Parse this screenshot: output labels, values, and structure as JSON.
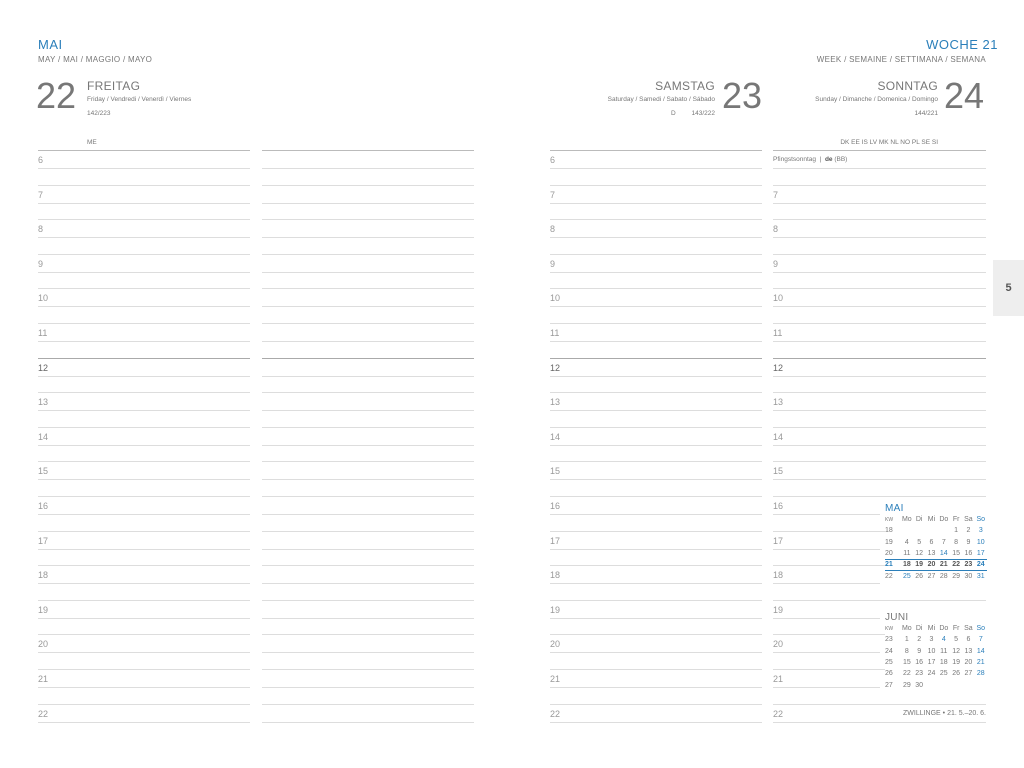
{
  "left_header": {
    "month": "MAI",
    "month_translations": "MAY / MAI / MAGGIO / MAYO"
  },
  "right_header": {
    "week": "WOCHE 21",
    "week_translations": "WEEK / SEMAINE / SETTIMANA / SEMANA"
  },
  "days": [
    {
      "number": "22",
      "name": "FREITAG",
      "translations": "Friday / Vendredi / Venerdì / Viernes",
      "day_count": "142/223",
      "note": "ME",
      "moon": ""
    },
    {
      "number": "23",
      "name": "SAMSTAG",
      "translations": "Saturday / Samedi / Sabato / Sábado",
      "day_count": "143/222",
      "moon": "D"
    },
    {
      "number": "24",
      "name": "SONNTAG",
      "translations": "Sunday / Dimanche / Domenica / Domingo",
      "day_count": "144/221",
      "note": "DK EE IS LV MK NL NO PL SE SI",
      "holiday": "Pfingstsonntag",
      "holiday_region_bold": "de",
      "holiday_region": "(BB)"
    }
  ],
  "hours": [
    "6",
    "7",
    "8",
    "9",
    "10",
    "11",
    "12",
    "13",
    "14",
    "15",
    "16",
    "17",
    "18",
    "19",
    "20",
    "21",
    "22"
  ],
  "tab": "5",
  "zodiac": "ZWILLINGE • 21. 5.–20. 6.",
  "colors": {
    "accent": "#2b7fba",
    "text": "#777777"
  },
  "mini_calendars": [
    {
      "title": "MAI",
      "header": [
        "KW",
        "Mo",
        "Di",
        "Mi",
        "Do",
        "Fr",
        "Sa",
        "So"
      ],
      "rows": [
        [
          "18",
          "",
          "",
          "",
          "",
          "1",
          "2",
          "3"
        ],
        [
          "19",
          "4",
          "5",
          "6",
          "7",
          "8",
          "9",
          "10"
        ],
        [
          "20",
          "11",
          "12",
          "13",
          "14",
          "15",
          "16",
          "17"
        ],
        [
          "21",
          "18",
          "19",
          "20",
          "21",
          "22",
          "23",
          "24"
        ],
        [
          "22",
          "25",
          "26",
          "27",
          "28",
          "29",
          "30",
          "31"
        ]
      ],
      "current_week": "21",
      "holidays": [
        "14",
        "25"
      ]
    },
    {
      "title": "JUNI",
      "header": [
        "KW",
        "Mo",
        "Di",
        "Mi",
        "Do",
        "Fr",
        "Sa",
        "So"
      ],
      "rows": [
        [
          "23",
          "1",
          "2",
          "3",
          "4",
          "5",
          "6",
          "7"
        ],
        [
          "24",
          "8",
          "9",
          "10",
          "11",
          "12",
          "13",
          "14"
        ],
        [
          "25",
          "15",
          "16",
          "17",
          "18",
          "19",
          "20",
          "21"
        ],
        [
          "26",
          "22",
          "23",
          "24",
          "25",
          "26",
          "27",
          "28"
        ],
        [
          "27",
          "29",
          "30",
          "",
          "",
          "",
          "",
          ""
        ]
      ],
      "current_week": "",
      "holidays": [
        "4"
      ]
    }
  ]
}
